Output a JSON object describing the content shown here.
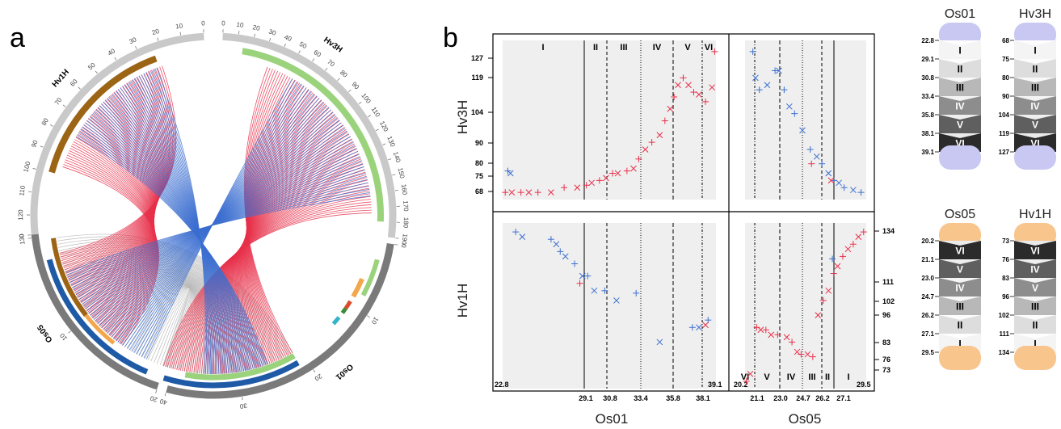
{
  "colors": {
    "homolog_red": "#e8304a",
    "homolog_blue": "#3c6fd0",
    "homolog_gray": "#b8b8b8",
    "hv_track": "#9c6415",
    "light_green": "#9ad37c",
    "dark_blue": "#1f5aa6",
    "outer_gray": "#7a7a7a",
    "orange": "#f3a74d",
    "lavender": "#c8c8f2",
    "peach": "#f8c58c"
  },
  "panel_a": {
    "label": "a",
    "chromosomes": [
      {
        "name": "Hv3H",
        "ticks": [
          "0",
          "10",
          "20",
          "30",
          "40",
          "50",
          "60",
          "70",
          "80",
          "90",
          "100",
          "110",
          "120",
          "130",
          "140",
          "150",
          "160",
          "170",
          "180",
          "190"
        ]
      },
      {
        "name": "Hv1H",
        "ticks": [
          "0",
          "10",
          "20",
          "30",
          "40",
          "50",
          "60",
          "70",
          "80",
          "90",
          "100",
          "110",
          "120",
          "130"
        ]
      },
      {
        "name": "Os01",
        "ticks": [
          "0",
          "10",
          "20",
          "30",
          "40"
        ]
      },
      {
        "name": "Os05",
        "ticks": [
          "0",
          "10",
          "20"
        ]
      }
    ]
  },
  "panel_b": {
    "label": "b",
    "row_labels": [
      "Hv3H",
      "Hv1H"
    ],
    "col_labels": [
      "Os01",
      "Os05"
    ],
    "hv3h_ticks": [
      "127",
      "119",
      "104",
      "90",
      "80",
      "75",
      "68"
    ],
    "hv1h_ticks": [
      "134",
      "111",
      "102",
      "96",
      "83",
      "76",
      "73"
    ],
    "os01_ticks": [
      "22.8",
      "29.1",
      "30.8",
      "33.4",
      "35.8",
      "38.1",
      "39.1"
    ],
    "os05_ticks": [
      "20.2",
      "21.1",
      "23.0",
      "24.7",
      "26.2",
      "27.1",
      "29.5"
    ],
    "os01_segments": [
      "I",
      "II",
      "III",
      "IV",
      "V",
      "VI"
    ],
    "os05_segments": [
      "VI",
      "V",
      "IV",
      "III",
      "II",
      "I"
    ]
  },
  "chart_data": [
    {
      "type": "scatter",
      "title": "",
      "xlabel": "Os01",
      "ylabel": "Hv3H",
      "xlim": [
        22.8,
        39.1
      ],
      "ylim": [
        65,
        130
      ],
      "series": [
        {
          "name": "",
          "color": "red",
          "points": [
            [
              23.0,
              68
            ],
            [
              23.5,
              68
            ],
            [
              24.2,
              68
            ],
            [
              24.8,
              68
            ],
            [
              25.5,
              68
            ],
            [
              26.5,
              68
            ],
            [
              27.5,
              70
            ],
            [
              28.5,
              70
            ],
            [
              29.2,
              71
            ],
            [
              29.6,
              72
            ],
            [
              30.2,
              73
            ],
            [
              30.7,
              74
            ],
            [
              31.2,
              76
            ],
            [
              31.6,
              76
            ],
            [
              32.3,
              77
            ],
            [
              32.8,
              78
            ],
            [
              33.2,
              82
            ],
            [
              33.7,
              86
            ],
            [
              34.2,
              89
            ],
            [
              34.8,
              92
            ],
            [
              35.2,
              98
            ],
            [
              35.6,
              103
            ],
            [
              35.9,
              108
            ],
            [
              36.2,
              113
            ],
            [
              36.6,
              116
            ],
            [
              37.0,
              113
            ],
            [
              37.4,
              110
            ],
            [
              37.8,
              109
            ],
            [
              38.3,
              106
            ],
            [
              38.8,
              112
            ],
            [
              39.0,
              127
            ]
          ]
        },
        {
          "name": "",
          "color": "blue",
          "points": [
            [
              23.2,
              77
            ],
            [
              23.4,
              76
            ]
          ]
        }
      ]
    },
    {
      "type": "scatter",
      "title": "",
      "xlabel": "Os05",
      "ylabel": "Hv3H",
      "xlim": [
        20.2,
        29.5
      ],
      "ylim": [
        65,
        130
      ],
      "series": [
        {
          "name": "",
          "color": "blue",
          "points": [
            [
              20.8,
              127
            ],
            [
              21.0,
              116
            ],
            [
              21.3,
              111
            ],
            [
              21.9,
              113
            ],
            [
              22.5,
              119
            ],
            [
              22.8,
              119
            ],
            [
              23.2,
              111
            ],
            [
              23.6,
              104
            ],
            [
              24.0,
              101
            ],
            [
              24.6,
              94
            ],
            [
              25.2,
              86
            ],
            [
              25.7,
              83
            ],
            [
              26.1,
              80
            ],
            [
              26.6,
              76
            ],
            [
              27.0,
              73
            ],
            [
              27.4,
              72
            ],
            [
              27.8,
              70
            ],
            [
              28.5,
              69
            ],
            [
              29.1,
              68
            ]
          ]
        },
        {
          "name": "",
          "color": "red",
          "points": [
            [
              25.3,
              80
            ],
            [
              26.8,
              73
            ]
          ]
        }
      ]
    },
    {
      "type": "scatter",
      "title": "",
      "xlabel": "Os01",
      "ylabel": "Hv1H",
      "xlim": [
        22.8,
        39.1
      ],
      "ylim": [
        70,
        137
      ],
      "series": [
        {
          "name": "",
          "color": "blue",
          "points": [
            [
              23.8,
              134
            ],
            [
              24.3,
              132
            ],
            [
              26.5,
              131
            ],
            [
              26.9,
              129
            ],
            [
              27.2,
              126
            ],
            [
              27.6,
              124
            ],
            [
              28.3,
              121
            ],
            [
              28.9,
              116
            ],
            [
              29.3,
              116
            ],
            [
              29.8,
              110
            ],
            [
              30.6,
              110
            ],
            [
              31.5,
              106
            ],
            [
              33.0,
              109
            ],
            [
              34.8,
              89
            ],
            [
              37.3,
              95
            ],
            [
              37.8,
              95
            ],
            [
              38.5,
              98
            ]
          ]
        },
        {
          "name": "",
          "color": "red",
          "points": [
            [
              28.7,
              113
            ],
            [
              38.3,
              96
            ]
          ]
        }
      ]
    },
    {
      "type": "scatter",
      "title": "",
      "xlabel": "Os05",
      "ylabel": "Hv1H",
      "xlim": [
        20.2,
        29.5
      ],
      "ylim": [
        70,
        137
      ],
      "series": [
        {
          "name": "",
          "color": "red",
          "points": [
            [
              20.3,
              73
            ],
            [
              20.6,
              76
            ],
            [
              21.1,
              95
            ],
            [
              21.4,
              94
            ],
            [
              21.8,
              94
            ],
            [
              22.2,
              92
            ],
            [
              22.7,
              92
            ],
            [
              23.4,
              91
            ],
            [
              23.8,
              89
            ],
            [
              24.2,
              85
            ],
            [
              24.5,
              84
            ],
            [
              25.0,
              84
            ],
            [
              25.4,
              83
            ],
            [
              25.8,
              100
            ],
            [
              26.2,
              106
            ],
            [
              26.6,
              110
            ],
            [
              27.0,
              117
            ],
            [
              27.3,
              120
            ],
            [
              27.7,
              124
            ],
            [
              28.1,
              127
            ],
            [
              28.5,
              129
            ],
            [
              28.9,
              132
            ],
            [
              29.3,
              134
            ]
          ]
        },
        {
          "name": "",
          "color": "blue",
          "points": [
            [
              26.9,
              123
            ]
          ]
        }
      ]
    }
  ],
  "right_legend": {
    "os01": {
      "name": "Os01",
      "ticks": [
        "22.8",
        "29.1",
        "30.8",
        "33.4",
        "35.8",
        "38.1",
        "39.1"
      ],
      "segments": [
        "I",
        "II",
        "III",
        "IV",
        "V",
        "VI"
      ]
    },
    "hv3h": {
      "name": "Hv3H",
      "ticks": [
        "68",
        "75",
        "80",
        "90",
        "104",
        "119",
        "127"
      ],
      "segments": [
        "I",
        "II",
        "III",
        "IV",
        "V",
        "VI"
      ]
    },
    "os05": {
      "name": "Os05",
      "ticks": [
        "20.2",
        "21.1",
        "23.0",
        "24.7",
        "26.2",
        "27.1",
        "29.5"
      ],
      "segments": [
        "VI",
        "V",
        "IV",
        "III",
        "II",
        "I"
      ]
    },
    "hv1h": {
      "name": "Hv1H",
      "ticks": [
        "73",
        "76",
        "83",
        "96",
        "102",
        "111",
        "134"
      ],
      "segments": [
        "VI",
        "IV",
        "V",
        "III",
        "II",
        "I"
      ]
    }
  }
}
